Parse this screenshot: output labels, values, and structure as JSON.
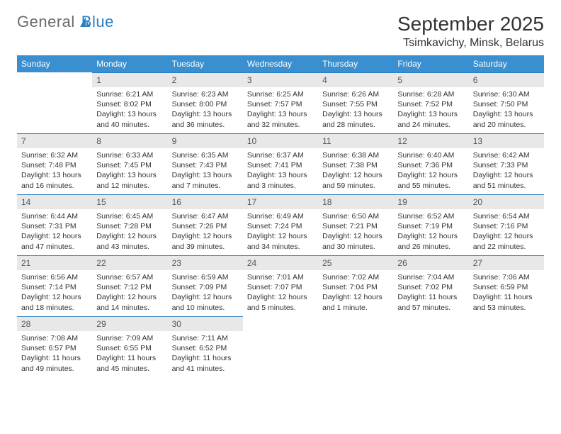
{
  "brand": {
    "part1": "General",
    "part2": "Blue"
  },
  "colors": {
    "header_bg": "#3a8fd0",
    "header_text": "#ffffff",
    "daynum_bg": "#e8e8e8",
    "daynum_border": "#2a7fc0",
    "body_text": "#333333",
    "logo_gray": "#6a6a6a",
    "logo_blue": "#2a7fc0",
    "page_bg": "#ffffff"
  },
  "typography": {
    "title_fontsize": 28,
    "location_fontsize": 16,
    "header_fontsize": 12,
    "cell_fontsize": 10.5
  },
  "title": "September 2025",
  "location": "Tsimkavichy, Minsk, Belarus",
  "day_headers": [
    "Sunday",
    "Monday",
    "Tuesday",
    "Wednesday",
    "Thursday",
    "Friday",
    "Saturday"
  ],
  "weeks": [
    [
      null,
      {
        "n": "1",
        "sunrise": "Sunrise: 6:21 AM",
        "sunset": "Sunset: 8:02 PM",
        "daylight": "Daylight: 13 hours and 40 minutes."
      },
      {
        "n": "2",
        "sunrise": "Sunrise: 6:23 AM",
        "sunset": "Sunset: 8:00 PM",
        "daylight": "Daylight: 13 hours and 36 minutes."
      },
      {
        "n": "3",
        "sunrise": "Sunrise: 6:25 AM",
        "sunset": "Sunset: 7:57 PM",
        "daylight": "Daylight: 13 hours and 32 minutes."
      },
      {
        "n": "4",
        "sunrise": "Sunrise: 6:26 AM",
        "sunset": "Sunset: 7:55 PM",
        "daylight": "Daylight: 13 hours and 28 minutes."
      },
      {
        "n": "5",
        "sunrise": "Sunrise: 6:28 AM",
        "sunset": "Sunset: 7:52 PM",
        "daylight": "Daylight: 13 hours and 24 minutes."
      },
      {
        "n": "6",
        "sunrise": "Sunrise: 6:30 AM",
        "sunset": "Sunset: 7:50 PM",
        "daylight": "Daylight: 13 hours and 20 minutes."
      }
    ],
    [
      {
        "n": "7",
        "sunrise": "Sunrise: 6:32 AM",
        "sunset": "Sunset: 7:48 PM",
        "daylight": "Daylight: 13 hours and 16 minutes."
      },
      {
        "n": "8",
        "sunrise": "Sunrise: 6:33 AM",
        "sunset": "Sunset: 7:45 PM",
        "daylight": "Daylight: 13 hours and 12 minutes."
      },
      {
        "n": "9",
        "sunrise": "Sunrise: 6:35 AM",
        "sunset": "Sunset: 7:43 PM",
        "daylight": "Daylight: 13 hours and 7 minutes."
      },
      {
        "n": "10",
        "sunrise": "Sunrise: 6:37 AM",
        "sunset": "Sunset: 7:41 PM",
        "daylight": "Daylight: 13 hours and 3 minutes."
      },
      {
        "n": "11",
        "sunrise": "Sunrise: 6:38 AM",
        "sunset": "Sunset: 7:38 PM",
        "daylight": "Daylight: 12 hours and 59 minutes."
      },
      {
        "n": "12",
        "sunrise": "Sunrise: 6:40 AM",
        "sunset": "Sunset: 7:36 PM",
        "daylight": "Daylight: 12 hours and 55 minutes."
      },
      {
        "n": "13",
        "sunrise": "Sunrise: 6:42 AM",
        "sunset": "Sunset: 7:33 PM",
        "daylight": "Daylight: 12 hours and 51 minutes."
      }
    ],
    [
      {
        "n": "14",
        "sunrise": "Sunrise: 6:44 AM",
        "sunset": "Sunset: 7:31 PM",
        "daylight": "Daylight: 12 hours and 47 minutes."
      },
      {
        "n": "15",
        "sunrise": "Sunrise: 6:45 AM",
        "sunset": "Sunset: 7:28 PM",
        "daylight": "Daylight: 12 hours and 43 minutes."
      },
      {
        "n": "16",
        "sunrise": "Sunrise: 6:47 AM",
        "sunset": "Sunset: 7:26 PM",
        "daylight": "Daylight: 12 hours and 39 minutes."
      },
      {
        "n": "17",
        "sunrise": "Sunrise: 6:49 AM",
        "sunset": "Sunset: 7:24 PM",
        "daylight": "Daylight: 12 hours and 34 minutes."
      },
      {
        "n": "18",
        "sunrise": "Sunrise: 6:50 AM",
        "sunset": "Sunset: 7:21 PM",
        "daylight": "Daylight: 12 hours and 30 minutes."
      },
      {
        "n": "19",
        "sunrise": "Sunrise: 6:52 AM",
        "sunset": "Sunset: 7:19 PM",
        "daylight": "Daylight: 12 hours and 26 minutes."
      },
      {
        "n": "20",
        "sunrise": "Sunrise: 6:54 AM",
        "sunset": "Sunset: 7:16 PM",
        "daylight": "Daylight: 12 hours and 22 minutes."
      }
    ],
    [
      {
        "n": "21",
        "sunrise": "Sunrise: 6:56 AM",
        "sunset": "Sunset: 7:14 PM",
        "daylight": "Daylight: 12 hours and 18 minutes."
      },
      {
        "n": "22",
        "sunrise": "Sunrise: 6:57 AM",
        "sunset": "Sunset: 7:12 PM",
        "daylight": "Daylight: 12 hours and 14 minutes."
      },
      {
        "n": "23",
        "sunrise": "Sunrise: 6:59 AM",
        "sunset": "Sunset: 7:09 PM",
        "daylight": "Daylight: 12 hours and 10 minutes."
      },
      {
        "n": "24",
        "sunrise": "Sunrise: 7:01 AM",
        "sunset": "Sunset: 7:07 PM",
        "daylight": "Daylight: 12 hours and 5 minutes."
      },
      {
        "n": "25",
        "sunrise": "Sunrise: 7:02 AM",
        "sunset": "Sunset: 7:04 PM",
        "daylight": "Daylight: 12 hours and 1 minute."
      },
      {
        "n": "26",
        "sunrise": "Sunrise: 7:04 AM",
        "sunset": "Sunset: 7:02 PM",
        "daylight": "Daylight: 11 hours and 57 minutes."
      },
      {
        "n": "27",
        "sunrise": "Sunrise: 7:06 AM",
        "sunset": "Sunset: 6:59 PM",
        "daylight": "Daylight: 11 hours and 53 minutes."
      }
    ],
    [
      {
        "n": "28",
        "sunrise": "Sunrise: 7:08 AM",
        "sunset": "Sunset: 6:57 PM",
        "daylight": "Daylight: 11 hours and 49 minutes."
      },
      {
        "n": "29",
        "sunrise": "Sunrise: 7:09 AM",
        "sunset": "Sunset: 6:55 PM",
        "daylight": "Daylight: 11 hours and 45 minutes."
      },
      {
        "n": "30",
        "sunrise": "Sunrise: 7:11 AM",
        "sunset": "Sunset: 6:52 PM",
        "daylight": "Daylight: 11 hours and 41 minutes."
      },
      null,
      null,
      null,
      null
    ]
  ]
}
